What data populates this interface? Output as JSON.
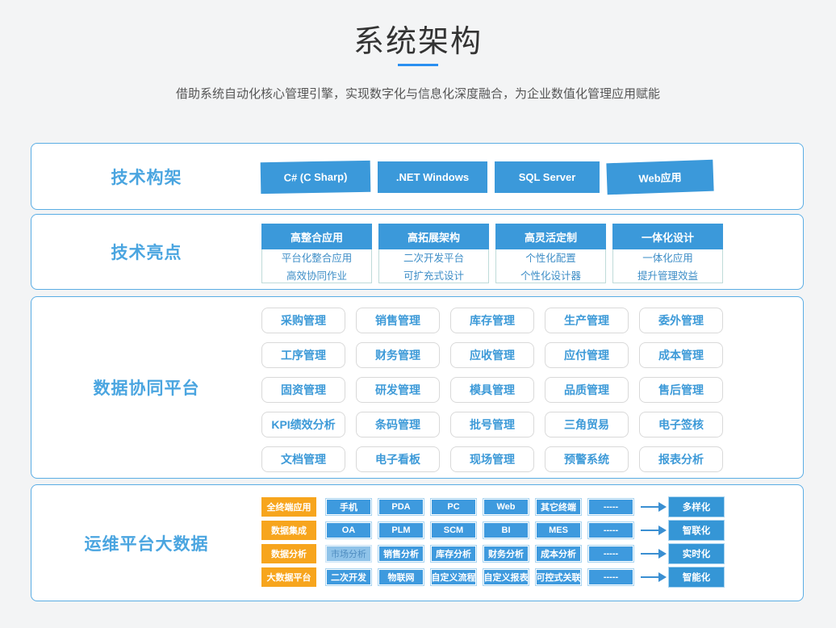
{
  "page": {
    "title": "系统架构",
    "subtitle": "借助系统自动化核心管理引擎，实现数字化与信息化深度融合，为企业数值化管理应用赋能"
  },
  "colors": {
    "accent_blue": "#3b99da",
    "light_blue_border": "#5aade4",
    "orange": "#f7a51d",
    "title_text": "#333333",
    "section_title_blue": "#4aa5e0"
  },
  "sections": {
    "tech_framework": {
      "title": "技术构架",
      "items": [
        "C#  (C Sharp)",
        ".NET Windows",
        "SQL Server",
        "Web应用"
      ]
    },
    "tech_highlights": {
      "title": "技术亮点",
      "cards": [
        {
          "header": "高整合应用",
          "lines": [
            "平台化整合应用",
            "高效协同作业"
          ]
        },
        {
          "header": "高拓展架构",
          "lines": [
            "二次开发平台",
            "可扩充式设计"
          ]
        },
        {
          "header": "高灵活定制",
          "lines": [
            "个性化配置",
            "个性化设计器"
          ]
        },
        {
          "header": "一体化设计",
          "lines": [
            "一体化应用",
            "提升管理效益"
          ]
        }
      ]
    },
    "data_platform": {
      "title": "数据协同平台",
      "items": [
        "采购管理",
        "销售管理",
        "库存管理",
        "生产管理",
        "委外管理",
        "工序管理",
        "财务管理",
        "应收管理",
        "应付管理",
        "成本管理",
        "固资管理",
        "研发管理",
        "模具管理",
        "品质管理",
        "售后管理",
        "KPI绩效分析",
        "条码管理",
        "批号管理",
        "三角贸易",
        "电子签核",
        "文档管理",
        "电子看板",
        "现场管理",
        "预警系统",
        "报表分析"
      ]
    },
    "ops_platform": {
      "title": "运维平台大数据",
      "rows": [
        {
          "label": "全终端应用",
          "cells": [
            "手机",
            "PDA",
            "PC",
            "Web",
            "其它终端",
            "-----"
          ],
          "result": "多样化"
        },
        {
          "label": "数据集成",
          "cells": [
            "OA",
            "PLM",
            "SCM",
            "BI",
            "MES",
            "-----"
          ],
          "result": "智联化"
        },
        {
          "label": "数据分析",
          "cells": [
            "市场分析",
            "销售分析",
            "库存分析",
            "财务分析",
            "成本分析",
            "-----"
          ],
          "result": "实时化"
        },
        {
          "label": "大数据平台",
          "cells": [
            "二次开发",
            "物联网",
            "自定义流程",
            "自定义报表",
            "可控式关联",
            "-----"
          ],
          "result": "智能化"
        }
      ]
    }
  }
}
